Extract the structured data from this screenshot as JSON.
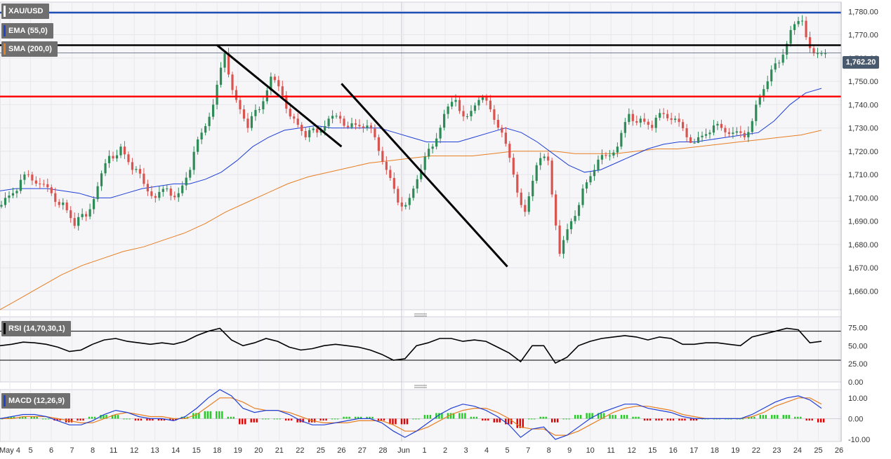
{
  "labels": {
    "symbol": "XAU/USD",
    "ema": "EMA (55,0)",
    "sma": "SMA (200,0)",
    "rsi": "RSI (14,70,30,1)",
    "macd": "MACD (12,26,9)"
  },
  "colors": {
    "bull": "#2e8b57",
    "bear": "#d9534f",
    "ema": "#1f3fd6",
    "sma": "#e67e22",
    "support_red": "#ff0000",
    "top_blue": "#1f4fb5",
    "macd_line": "#1f3fd6",
    "signal_line": "#e67e22",
    "hist_pos": "#22cc22",
    "hist_neg": "#e00000"
  },
  "price_badge": "1,762.20",
  "chart_data": [
    {
      "type": "candlestick",
      "ylim": [
        1652,
        1784
      ],
      "y_ticks": [
        "1,660.00",
        "1,670.00",
        "1,680.00",
        "1,690.00",
        "1,700.00",
        "1,710.00",
        "1,720.00",
        "1,730.00",
        "1,740.00",
        "1,750.00",
        "1,760.00",
        "1,770.00",
        "1,780.00"
      ],
      "y_tick_values": [
        1660,
        1670,
        1680,
        1690,
        1700,
        1710,
        1720,
        1730,
        1740,
        1750,
        1760,
        1770,
        1780
      ],
      "x_labels": [
        "May 4",
        "5",
        "6",
        "7",
        "8",
        "11",
        "12",
        "13",
        "14",
        "15",
        "18",
        "19",
        "20",
        "21",
        "22",
        "25",
        "26",
        "27",
        "28",
        "Jun",
        "1",
        "2",
        "3",
        "4",
        "5",
        "7",
        "8",
        "9",
        "10",
        "11",
        "12",
        "15",
        "16",
        "17",
        "18",
        "19",
        "22",
        "23",
        "24",
        "25",
        "26"
      ],
      "close_series": [
        1700,
        1703,
        1710,
        1706,
        1702,
        1698,
        1688,
        1692,
        1705,
        1718,
        1722,
        1712,
        1706,
        1700,
        1704,
        1702,
        1712,
        1728,
        1740,
        1762,
        1742,
        1730,
        1738,
        1752,
        1744,
        1734,
        1726,
        1728,
        1734,
        1734,
        1732,
        1730,
        1726,
        1712,
        1698,
        1700,
        1712,
        1722,
        1736,
        1742,
        1735,
        1742,
        1738,
        1728,
        1710,
        1694,
        1714,
        1716,
        1676,
        1690,
        1704,
        1712,
        1718,
        1722,
        1736,
        1734,
        1730,
        1736,
        1734,
        1726,
        1726,
        1728,
        1730,
        1728,
        1726,
        1740,
        1750,
        1758,
        1772,
        1776,
        1762,
        1762
      ],
      "ema_series": [
        1703,
        1704,
        1704,
        1704,
        1703,
        1702,
        1700,
        1700,
        1702,
        1704,
        1705,
        1706,
        1706,
        1708,
        1711,
        1716,
        1722,
        1726,
        1729,
        1730,
        1731,
        1730,
        1730,
        1730,
        1730,
        1728,
        1726,
        1724,
        1724,
        1724,
        1726,
        1728,
        1730,
        1728,
        1724,
        1719,
        1714,
        1711,
        1712,
        1715,
        1718,
        1721,
        1723,
        1724,
        1724,
        1725,
        1726,
        1727,
        1728,
        1733,
        1740,
        1745,
        1747
      ],
      "sma_series": [
        1652,
        1657,
        1662,
        1667,
        1671,
        1674,
        1677,
        1679,
        1682,
        1685,
        1689,
        1694,
        1698,
        1702,
        1706,
        1709,
        1711,
        1713,
        1715,
        1716,
        1717,
        1718,
        1718,
        1718,
        1719,
        1720,
        1720,
        1720,
        1719,
        1719,
        1719,
        1720,
        1721,
        1721,
        1722,
        1723,
        1724,
        1725,
        1726,
        1727,
        1729
      ],
      "horizontal_levels": [
        {
          "value": 1779.5,
          "color": "#1f4fb5"
        },
        {
          "value": 1765.5,
          "color": "#000000"
        },
        {
          "value": 1743.5,
          "color": "#ff0000"
        }
      ],
      "trendlines": [
        {
          "from": [
            "18",
            1765.5
          ],
          "to": [
            "26",
            1722
          ]
        },
        {
          "from": [
            "5",
            1670.5
          ],
          "to": [
            "26",
            1749
          ]
        }
      ],
      "current_price": 1762.2
    },
    {
      "type": "line",
      "title": "RSI (14,70,30,1)",
      "ylim": [
        0,
        90
      ],
      "y_ticks": [
        "0.00",
        "25.00",
        "50.00",
        "75.00"
      ],
      "y_tick_values": [
        0,
        25,
        50,
        75
      ],
      "levels": [
        70,
        30
      ],
      "values": [
        50,
        52,
        55,
        54,
        52,
        48,
        42,
        44,
        52,
        58,
        60,
        56,
        54,
        52,
        54,
        52,
        56,
        64,
        70,
        74,
        58,
        50,
        54,
        60,
        56,
        48,
        44,
        46,
        50,
        52,
        50,
        48,
        44,
        38,
        30,
        32,
        50,
        54,
        60,
        60,
        56,
        58,
        56,
        48,
        40,
        28,
        50,
        50,
        26,
        34,
        50,
        56,
        60,
        62,
        64,
        62,
        58,
        62,
        60,
        52,
        52,
        54,
        54,
        52,
        50,
        62,
        66,
        70,
        74,
        72,
        54,
        56
      ]
    },
    {
      "type": "line+histogram",
      "title": "MACD (12,26,9)",
      "ylim": [
        -11,
        14
      ],
      "y_ticks": [
        "-10.00",
        "0.00",
        "10.00"
      ],
      "y_tick_values": [
        -10,
        0,
        10
      ],
      "macd": [
        0,
        1,
        2,
        2,
        1,
        -1,
        -3,
        -3,
        -1,
        2,
        4,
        3,
        1,
        0,
        0,
        -1,
        1,
        5,
        10,
        14,
        11,
        5,
        3,
        4,
        4,
        2,
        -1,
        -3,
        -3,
        -2,
        -1,
        0,
        0,
        -2,
        -6,
        -9,
        -6,
        -2,
        2,
        5,
        7,
        6,
        4,
        1,
        -3,
        -9,
        -5,
        -4,
        -10,
        -8,
        -4,
        0,
        3,
        5,
        7,
        7,
        5,
        4,
        3,
        1,
        0,
        0,
        0,
        0,
        0,
        2,
        5,
        8,
        10,
        11,
        9,
        5
      ],
      "signal": [
        0,
        0,
        1,
        1,
        1,
        0,
        -1,
        -2,
        -2,
        0,
        2,
        3,
        2,
        1,
        1,
        0,
        0,
        2,
        6,
        10,
        10,
        8,
        5,
        4,
        4,
        3,
        1,
        -1,
        -2,
        -2,
        -2,
        -1,
        -1,
        -1,
        -3,
        -6,
        -6,
        -4,
        -1,
        2,
        4,
        5,
        5,
        3,
        0,
        -4,
        -5,
        -5,
        -8,
        -8,
        -6,
        -3,
        0,
        3,
        5,
        6,
        6,
        5,
        4,
        2,
        1,
        0,
        0,
        0,
        0,
        1,
        3,
        6,
        8,
        10,
        10,
        7
      ]
    }
  ]
}
